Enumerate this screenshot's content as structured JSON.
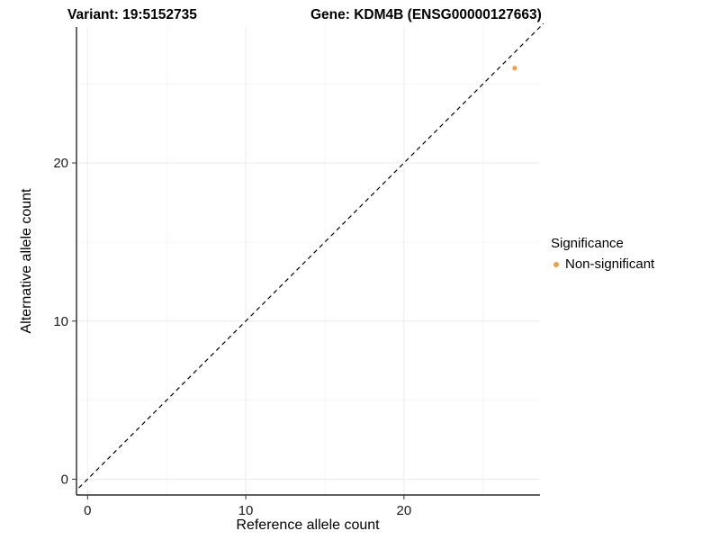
{
  "titles": {
    "variant": "Variant: 19:5152735",
    "gene": "Gene: KDM4B (ENSG00000127663)"
  },
  "legend": {
    "title": "Significance",
    "items": [
      {
        "label": "Non-significant",
        "color": "#F89C3C"
      }
    ]
  },
  "colors": {
    "point": "#F89C3C",
    "grid_major": "#ECECEC",
    "grid_minor": "#F5F5F5",
    "axis": "#000000",
    "tick": "#333333"
  },
  "chart_data": {
    "type": "scatter",
    "title": "Variant: 19:5152735 — Gene: KDM4B (ENSG00000127663)",
    "xlabel": "Reference allele count",
    "ylabel": "Alternative allele count",
    "xlim": [
      -0.7,
      28.6
    ],
    "ylim": [
      -1,
      28.6
    ],
    "x_ticks": [
      0,
      10,
      20
    ],
    "y_ticks": [
      0,
      10,
      20
    ],
    "x_minor_ticks": [
      5,
      15,
      25
    ],
    "y_minor_ticks": [
      5,
      15,
      25
    ],
    "grid": true,
    "legend_title": "Significance",
    "legend_position": "right",
    "series": [
      {
        "name": "Non-significant",
        "color": "#F89C3C",
        "points": [
          {
            "x": 27,
            "y": 26
          }
        ]
      }
    ],
    "identity_line": {
      "style": "dashed",
      "color": "#000000",
      "from": -2,
      "to": 30
    }
  }
}
